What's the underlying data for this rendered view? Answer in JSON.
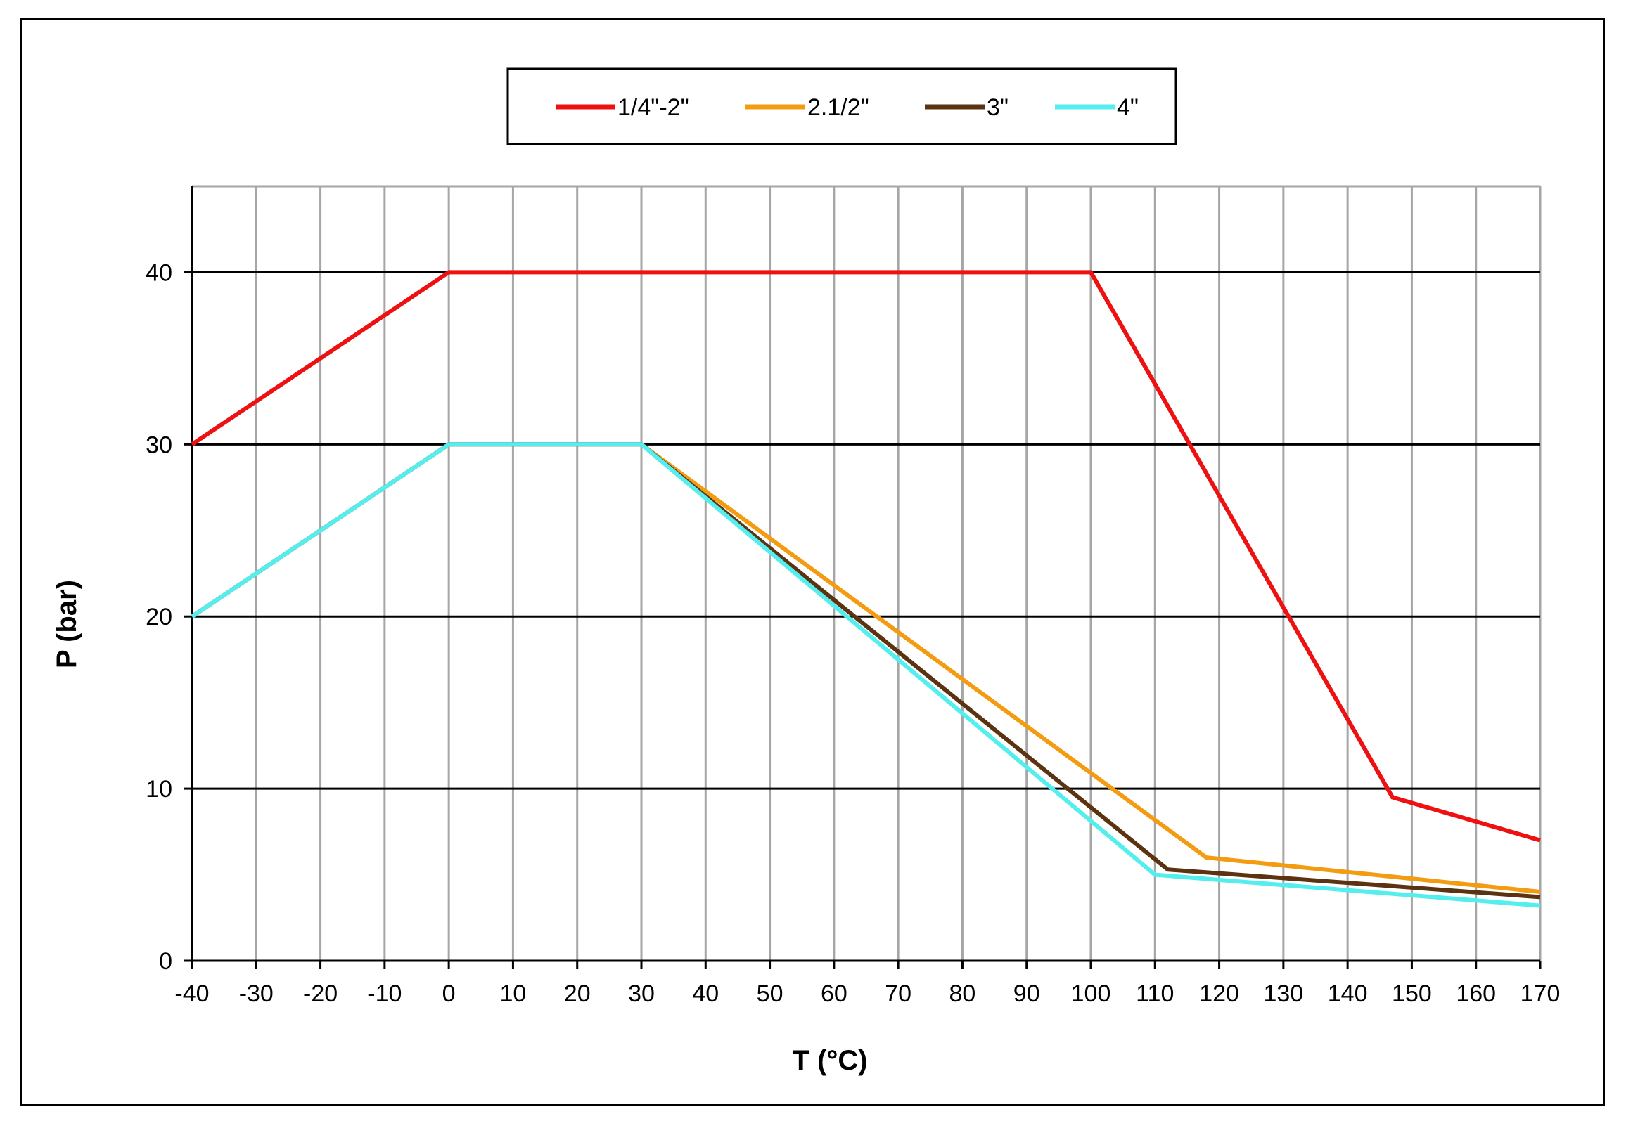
{
  "chart_data": {
    "type": "line",
    "title": "",
    "xlabel": "T (°C)",
    "ylabel": "P (bar)",
    "xlim": [
      -40,
      170
    ],
    "ylim": [
      0,
      45
    ],
    "x_ticks": [
      -40,
      -30,
      -20,
      -10,
      0,
      10,
      20,
      30,
      40,
      50,
      60,
      70,
      80,
      90,
      100,
      110,
      120,
      130,
      140,
      150,
      160,
      170
    ],
    "y_ticks": [
      0,
      10,
      20,
      30,
      40
    ],
    "grid": true,
    "legend_position": "top",
    "series": [
      {
        "name": "1/4\"-2\"",
        "color": "#ee1111",
        "points": [
          [
            -40,
            30
          ],
          [
            0,
            40
          ],
          [
            100,
            40
          ],
          [
            147,
            9.5
          ],
          [
            170,
            7
          ]
        ]
      },
      {
        "name": "2.1/2\"",
        "color": "#f39c12",
        "points": [
          [
            -40,
            20
          ],
          [
            0,
            30
          ],
          [
            30,
            30
          ],
          [
            118,
            6
          ],
          [
            170,
            4
          ]
        ]
      },
      {
        "name": "3\"",
        "color": "#5c3310",
        "points": [
          [
            -40,
            20
          ],
          [
            0,
            30
          ],
          [
            30,
            30
          ],
          [
            112,
            5.3
          ],
          [
            170,
            3.7
          ]
        ]
      },
      {
        "name": "4\"",
        "color": "#55eeee",
        "points": [
          [
            -40,
            20
          ],
          [
            0,
            30
          ],
          [
            30,
            30
          ],
          [
            110,
            5
          ],
          [
            170,
            3.2
          ]
        ]
      }
    ]
  }
}
